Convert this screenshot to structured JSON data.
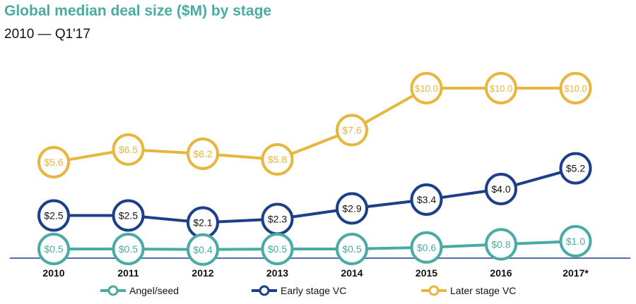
{
  "title": "Global median deal size ($M) by stage",
  "subtitle": "2010 — Q1'17",
  "chart_data": {
    "type": "line",
    "title": "Global median deal size ($M) by stage",
    "subtitle": "2010 — Q1'17",
    "categories": [
      "2010",
      "2011",
      "2012",
      "2013",
      "2014",
      "2015",
      "2016",
      "2017*"
    ],
    "ylim": [
      0,
      10
    ],
    "grid": false,
    "legend_position": "bottom",
    "series": [
      {
        "name": "Angel/seed",
        "color": "#4aaba4",
        "values": [
          0.5,
          0.5,
          0.4,
          0.5,
          0.5,
          0.6,
          0.8,
          1.0
        ],
        "labels": [
          "$0.5",
          "$0.5",
          "$0.4",
          "$0.5",
          "$0.5",
          "$0.6",
          "$0.8",
          "$1.0"
        ]
      },
      {
        "name": "Early stage VC",
        "color": "#1c3f8a",
        "values": [
          2.5,
          2.5,
          2.1,
          2.3,
          2.9,
          3.4,
          4.0,
          5.2
        ],
        "labels": [
          "$2.5",
          "$2.5",
          "$2.1",
          "$2.3",
          "$2.9",
          "$3.4",
          "$4.0",
          "$5.2"
        ]
      },
      {
        "name": "Later stage VC",
        "color": "#e8b53e",
        "values": [
          5.6,
          6.5,
          6.2,
          5.8,
          7.6,
          10.0,
          10.0,
          10.0
        ],
        "labels": [
          "$5.6",
          "$6.5",
          "$6.2",
          "$5.8",
          "$7.6",
          "$10.0",
          "$10.0",
          "$10.0"
        ]
      }
    ]
  }
}
